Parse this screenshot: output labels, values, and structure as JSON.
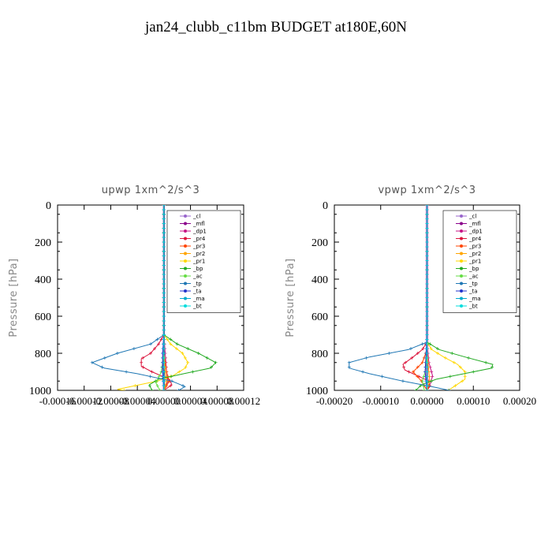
{
  "title": "jan24_clubb_c11bm  BUDGET at180E,60N",
  "chart_data": [
    {
      "type": "line",
      "title": "upwp   1xm^2/s^3",
      "ylabel": "Pressure [hPa]",
      "ylim": [
        1000,
        0
      ],
      "yticks": [
        0,
        200,
        400,
        600,
        800,
        1000
      ],
      "xlim": [
        -0.00016,
        0.00012
      ],
      "xtick_labels": [
        "-0.00016",
        "-0.00012",
        "-0.00008",
        "-0.00004",
        "0.00000",
        "0.00004",
        "0.00008",
        "0.00012"
      ],
      "xtick_values": [
        -0.00016,
        -0.00012,
        -8e-05,
        -4e-05,
        0.0,
        4e-05,
        8e-05,
        0.00012
      ],
      "legend": "top-right",
      "series": [
        {
          "name": "_cl",
          "color": "#9966cc",
          "p": [
            0,
            700,
            800,
            900,
            1000
          ],
          "x": [
            0,
            0,
            0,
            0,
            0
          ]
        },
        {
          "name": "_mfl",
          "color": "#8b008b",
          "p": [
            0,
            700,
            800,
            900,
            1000
          ],
          "x": [
            0,
            0,
            0,
            0,
            0
          ]
        },
        {
          "name": "_dp1",
          "color": "#c71585",
          "p": [
            0,
            700,
            800,
            900,
            950,
            1000
          ],
          "x": [
            0,
            0,
            2e-06,
            4e-06,
            6e-06,
            0
          ]
        },
        {
          "name": "_pr4",
          "color": "#dc143c",
          "p": [
            0,
            700,
            750,
            800,
            830,
            870,
            900,
            940,
            970,
            1000
          ],
          "x": [
            0,
            0,
            -8e-06,
            -2e-05,
            -3.4e-05,
            -3.4e-05,
            -1.8e-05,
            8e-06,
            1.2e-05,
            0
          ]
        },
        {
          "name": "_pr3",
          "color": "#ff4500",
          "p": [
            0,
            800,
            900,
            950,
            1000
          ],
          "x": [
            0,
            0,
            4e-06,
            8e-06,
            0
          ]
        },
        {
          "name": "_pr2",
          "color": "#ffa500",
          "p": [
            0,
            800,
            900,
            950,
            1000
          ],
          "x": [
            0,
            0,
            2e-06,
            4e-06,
            0
          ]
        },
        {
          "name": "_pr1",
          "color": "#ffd700",
          "p": [
            0,
            700,
            750,
            800,
            850,
            880,
            920,
            950,
            980,
            995,
            1000
          ],
          "x": [
            0,
            0,
            1e-05,
            2.8e-05,
            3.6e-05,
            3.2e-05,
            1.4e-05,
            -1e-05,
            -5e-05,
            -7e-05,
            -6e-05
          ]
        },
        {
          "name": "_bp",
          "color": "#22aa22",
          "p": [
            0,
            700,
            750,
            800,
            850,
            880,
            910,
            940,
            970,
            1000
          ],
          "x": [
            0,
            0,
            2e-05,
            5.2e-05,
            7.8e-05,
            7e-05,
            3e-05,
            -8e-06,
            -2.2e-05,
            -1.8e-05
          ]
        },
        {
          "name": "_ac",
          "color": "#66dd44",
          "p": [
            0,
            800,
            900,
            960,
            1000
          ],
          "x": [
            0,
            0,
            -4e-06,
            -1.2e-05,
            -6e-06
          ]
        },
        {
          "name": "_tp",
          "color": "#1f77b4",
          "p": [
            0,
            700,
            750,
            800,
            850,
            880,
            910,
            950,
            980,
            1000
          ],
          "x": [
            0,
            0,
            -2e-05,
            -7e-05,
            -0.000108,
            -9e-05,
            -4e-05,
            1.2e-05,
            3.2e-05,
            2.2e-05
          ]
        },
        {
          "name": "_ta",
          "color": "#2233cc",
          "p": [
            0,
            700,
            800,
            900,
            1000
          ],
          "x": [
            0,
            0,
            -2e-06,
            -2e-06,
            0
          ]
        },
        {
          "name": "_ma",
          "color": "#00aacc",
          "p": [
            0,
            700,
            800,
            900,
            1000
          ],
          "x": [
            0,
            0,
            0,
            0,
            0
          ]
        },
        {
          "name": "_bt",
          "color": "#00dddd",
          "p": [
            0,
            700,
            800,
            900,
            1000
          ],
          "x": [
            0,
            0,
            0,
            0,
            0
          ]
        }
      ]
    },
    {
      "type": "line",
      "title": "vpwp   1xm^2/s^3",
      "ylabel": "Pressure [hPa]",
      "ylim": [
        1000,
        0
      ],
      "yticks": [
        0,
        200,
        400,
        600,
        800,
        1000
      ],
      "xlim": [
        -0.0002,
        0.0002
      ],
      "xtick_labels": [
        "-0.00020",
        "-0.00010",
        "0.00000",
        "0.00010",
        "0.00020"
      ],
      "xtick_values": [
        -0.0002,
        -0.0001,
        0.0,
        0.0001,
        0.0002
      ],
      "legend": "top-right",
      "series": [
        {
          "name": "_cl",
          "color": "#9966cc",
          "p": [
            0,
            700,
            800,
            900,
            1000
          ],
          "x": [
            0,
            0,
            0,
            0,
            0
          ]
        },
        {
          "name": "_mfl",
          "color": "#8b008b",
          "p": [
            0,
            700,
            800,
            900,
            1000
          ],
          "x": [
            0,
            0,
            0,
            0,
            0
          ]
        },
        {
          "name": "_dp1",
          "color": "#c71585",
          "p": [
            0,
            750,
            850,
            920,
            960,
            1000
          ],
          "x": [
            0,
            0,
            4e-06,
            1.2e-05,
            8e-06,
            0
          ]
        },
        {
          "name": "_pr4",
          "color": "#dc143c",
          "p": [
            0,
            740,
            780,
            820,
            860,
            890,
            920,
            950,
            980,
            1000
          ],
          "x": [
            0,
            0,
            -1e-05,
            -3e-05,
            -5.2e-05,
            -4.8e-05,
            -2.2e-05,
            4e-06,
            6e-06,
            0
          ]
        },
        {
          "name": "_pr3",
          "color": "#ff4500",
          "p": [
            0,
            780,
            850,
            900,
            950,
            1000
          ],
          "x": [
            0,
            0,
            -1e-05,
            -3e-05,
            -1.2e-05,
            0
          ]
        },
        {
          "name": "_pr2",
          "color": "#ffa500",
          "p": [
            0,
            800,
            900,
            950,
            1000
          ],
          "x": [
            0,
            0,
            4e-06,
            6e-06,
            0
          ]
        },
        {
          "name": "_pr1",
          "color": "#ffd700",
          "p": [
            0,
            740,
            780,
            820,
            860,
            900,
            940,
            970,
            1000
          ],
          "x": [
            0,
            0,
            1e-05,
            3.6e-05,
            6.6e-05,
            8.2e-05,
            8.2e-05,
            6.4e-05,
            4.6e-05
          ]
        },
        {
          "name": "_bp",
          "color": "#22aa22",
          "p": [
            0,
            740,
            780,
            820,
            860,
            880,
            910,
            940,
            970,
            1000
          ],
          "x": [
            0,
            0,
            2.6e-05,
            8.2e-05,
            0.000142,
            0.00014,
            8e-05,
            2e-05,
            -1.2e-05,
            -2.4e-05
          ]
        },
        {
          "name": "_ac",
          "color": "#66dd44",
          "p": [
            0,
            800,
            900,
            950,
            1000
          ],
          "x": [
            0,
            0,
            -4e-06,
            -1e-05,
            -6e-06
          ]
        },
        {
          "name": "_tp",
          "color": "#1f77b4",
          "p": [
            0,
            740,
            780,
            820,
            850,
            880,
            910,
            950,
            980,
            1000
          ],
          "x": [
            0,
            0,
            -4e-05,
            -0.000124,
            -0.000168,
            -0.000168,
            -0.000124,
            -5.2e-05,
            1e-05,
            4.8e-05
          ]
        },
        {
          "name": "_ta",
          "color": "#2233cc",
          "p": [
            0,
            700,
            800,
            900,
            1000
          ],
          "x": [
            0,
            0,
            -2e-06,
            -4e-06,
            0
          ]
        },
        {
          "name": "_ma",
          "color": "#00aacc",
          "p": [
            0,
            700,
            800,
            900,
            1000
          ],
          "x": [
            0,
            0,
            0,
            0,
            0
          ]
        },
        {
          "name": "_bt",
          "color": "#00dddd",
          "p": [
            0,
            700,
            800,
            900,
            1000
          ],
          "x": [
            0,
            0,
            0,
            0,
            0
          ]
        }
      ]
    }
  ]
}
